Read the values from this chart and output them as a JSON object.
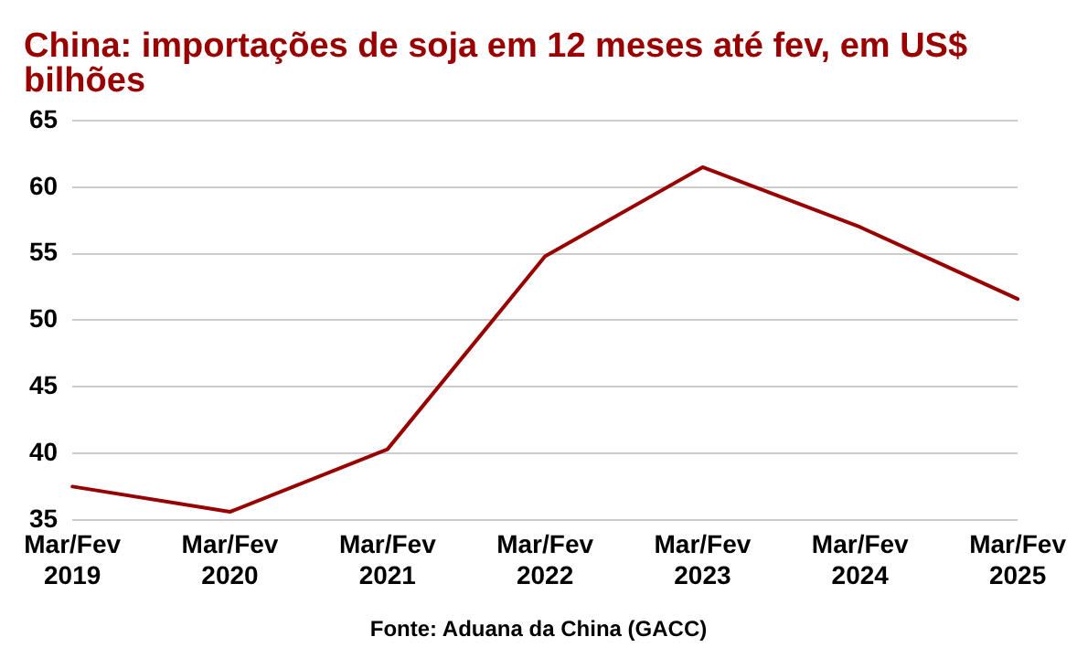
{
  "chart_data": {
    "type": "line",
    "title": "China: importações de soja em 12 meses até fev, em US$ bilhões",
    "categories": [
      "Mar/Fev 2019",
      "Mar/Fev 2020",
      "Mar/Fev 2021",
      "Mar/Fev 2022",
      "Mar/Fev 2023",
      "Mar/Fev 2024",
      "Mar/Fev 2025"
    ],
    "series": [
      {
        "color": "#990000",
        "values": [
          37.5,
          35.6,
          40.3,
          54.8,
          61.5,
          57.0,
          51.6
        ]
      }
    ],
    "ylim": [
      35,
      65
    ],
    "yticks": [
      35,
      40,
      45,
      50,
      55,
      60,
      65
    ],
    "grid": "y",
    "legend": false,
    "marker": "none",
    "line_style": "solid",
    "annotations": [
      "Fonte: Aduana da China (GACC)"
    ]
  }
}
